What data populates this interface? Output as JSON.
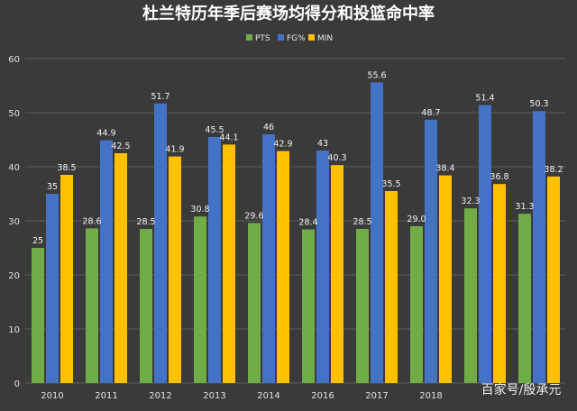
{
  "chart_data": {
    "type": "bar",
    "title": "杜兰特历年季后赛场均得分和投篮命中率",
    "categories": [
      "2010",
      "2011",
      "2012",
      "2013",
      "2014",
      "2016",
      "2017",
      "2018",
      "",
      ""
    ],
    "series": [
      {
        "name": "PTS",
        "color": "#70ad47",
        "values": [
          25,
          28.6,
          28.5,
          30.8,
          29.6,
          28.4,
          28.5,
          29.0,
          32.3,
          31.3
        ],
        "labels": [
          "25",
          "28.6",
          "28.5",
          "30.8",
          "29.6",
          "28.4",
          "28.5",
          "29.0",
          "32.3",
          "31.3"
        ]
      },
      {
        "name": "FG%",
        "color": "#4472c4",
        "values": [
          35,
          44.9,
          51.7,
          45.5,
          46,
          43,
          55.6,
          48.7,
          51.4,
          50.3
        ],
        "labels": [
          "35",
          "44.9",
          "51.7",
          "45.5",
          "46",
          "43",
          "55.6",
          "48.7",
          "51.4",
          "50.3"
        ]
      },
      {
        "name": "MIN",
        "color": "#ffc000",
        "values": [
          38.5,
          42.5,
          41.9,
          44.1,
          42.9,
          40.3,
          35.5,
          38.4,
          36.8,
          38.2
        ],
        "labels": [
          "38.5",
          "42.5",
          "41.9",
          "44.1",
          "42.9",
          "40.3",
          "35.5",
          "38.4",
          "36.8",
          "38.2"
        ]
      }
    ],
    "ylim": [
      0,
      60
    ],
    "yticks": [
      0,
      10,
      20,
      30,
      40,
      50,
      60
    ],
    "grid": true,
    "legend": "top-center",
    "xlabel": "",
    "ylabel": ""
  },
  "watermark": "百家号/殷承元",
  "colors": {
    "background": "#3a3a3a",
    "grid": "#5c5c5c",
    "text": "#e0e0e0"
  }
}
